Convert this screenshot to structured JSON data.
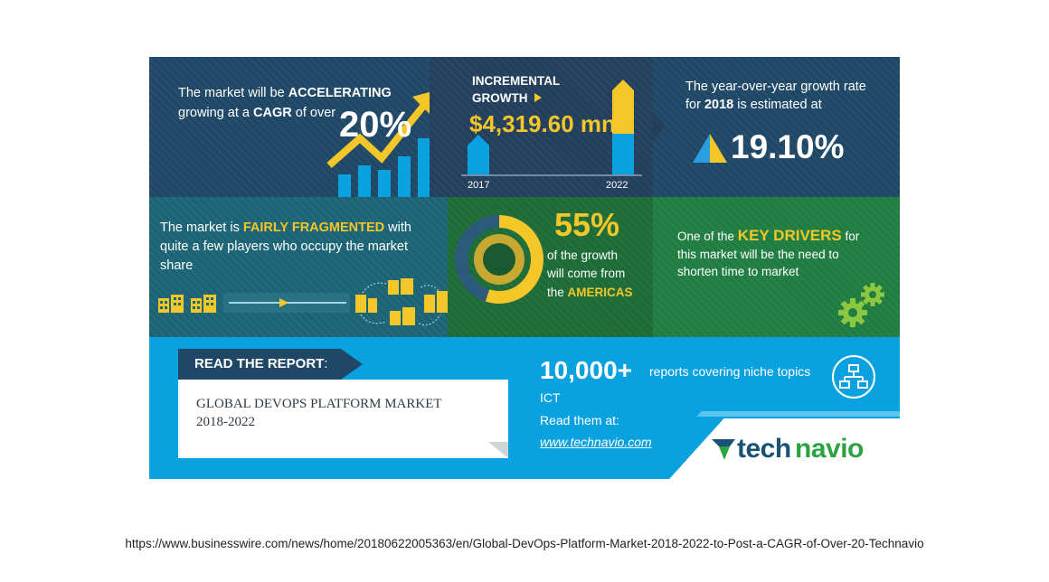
{
  "colors": {
    "navy": "#1f4766",
    "navy_mid": "#233f5c",
    "teal": "#1c6475",
    "olive": "#1d6b37",
    "green": "#1f7d41",
    "blue": "#0aa1e0",
    "yellow": "#f4c728",
    "light_blue": "#2a9fe0"
  },
  "panel1": {
    "line1_pre": "The market will be ",
    "line1_em": "ACCELERATING",
    "line2_pre": "growing at a ",
    "line2_em": "CAGR",
    "line2_post": " of over",
    "big_value": "20%"
  },
  "panel2": {
    "label_line1": "INCREMENTAL",
    "label_line2": "GROWTH",
    "value": "$4,319.60 mn",
    "year_start": "2017",
    "year_end": "2022",
    "icon": "play-triangle-icon"
  },
  "panel3": {
    "line1": "The year-over-year growth rate",
    "line2_pre": "for ",
    "line2_em": "2018",
    "line2_post": " is estimated at",
    "value": "19.10%",
    "icon": "triangle-up-icon"
  },
  "panel4": {
    "line1_pre": "The market is ",
    "line1_em": "FAIRLY FRAGMENTED",
    "line1_post": " with",
    "line2": "quite a few players who occupy the market",
    "line3": "share"
  },
  "panel5": {
    "value": "55%",
    "line1": "of the growth",
    "line2": "will come from",
    "line3_pre": "the ",
    "line3_em": "AMERICAS"
  },
  "panel6": {
    "line1_pre": "One of the ",
    "line1_em": "KEY DRIVERS",
    "line1_post": " for",
    "line2": "this market will be the need to",
    "line3": "shorten time to market",
    "icon": "gears-icon"
  },
  "footer_panel": {
    "read_label": "READ THE REPORT",
    "read_colon": ":",
    "report_title_line1": "GLOBAL DEVOPS PLATFORM MARKET",
    "report_title_line2": "2018-2022",
    "reports_count": "10,000+",
    "reports_text": "reports covering niche topics",
    "category": "ICT",
    "read_them": "Read them at:",
    "link": "www.technavio.com",
    "logo_part1": "tech",
    "logo_part2": "navio",
    "icon": "network-icon"
  },
  "source_url": "https://www.businesswire.com/news/home/20180622005363/en/Global-DevOps-Platform-Market-2018-2022-to-Post-a-CAGR-of-Over-20-Technavio"
}
